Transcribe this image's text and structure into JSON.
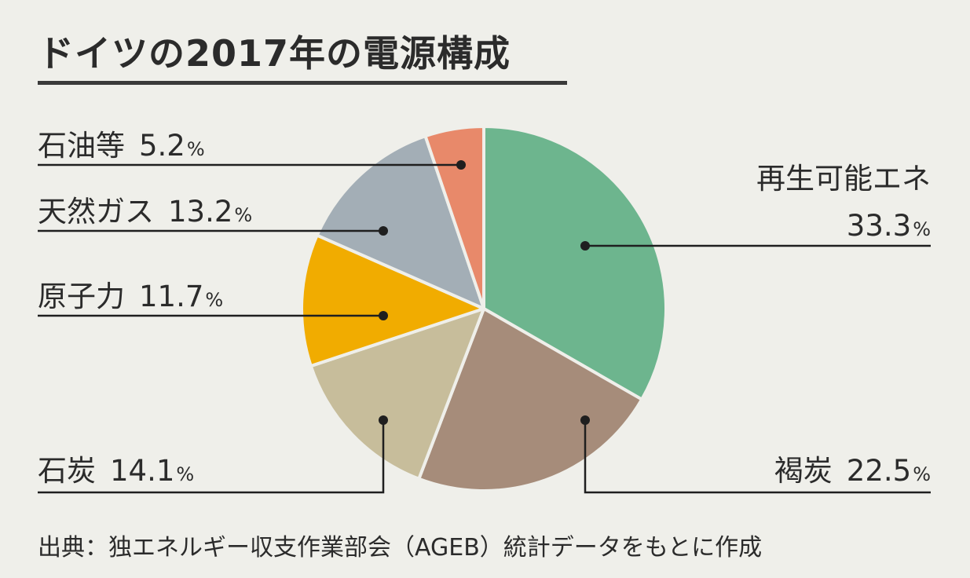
{
  "title": "ドイツの2017年の電源構成",
  "source": "出典：独エネルギー収支作業部会（AGEB）統計データをもとに作成",
  "chart_data": {
    "type": "pie",
    "unit": "%",
    "slices": [
      {
        "name": "再生可能エネ",
        "value": 33.3,
        "color": "#6db58e"
      },
      {
        "name": "褐炭",
        "value": 22.5,
        "color": "#a68c7a"
      },
      {
        "name": "石炭",
        "value": 14.1,
        "color": "#c7bd9b"
      },
      {
        "name": "原子力",
        "value": 11.7,
        "color": "#f1ac00"
      },
      {
        "name": "天然ガス",
        "value": 13.2,
        "color": "#a3aeb6"
      },
      {
        "name": "石油等",
        "value": 5.2,
        "color": "#e8896a"
      }
    ]
  }
}
